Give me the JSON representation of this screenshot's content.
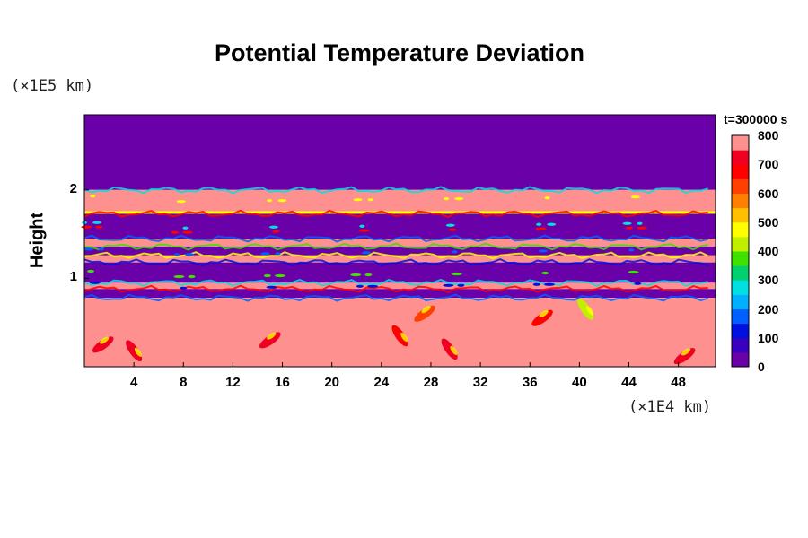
{
  "chart_data": {
    "type": "heatmap",
    "title": "Potential Temperature Deviation",
    "ylabel": "Height",
    "y_unit": "(×1E5 km)",
    "x_unit": "(×1E4 km)",
    "time_label": "t=300000 s",
    "xlim": [
      0,
      51
    ],
    "ylim": [
      0,
      2.85
    ],
    "x_ticks": [
      4,
      8,
      12,
      16,
      20,
      24,
      28,
      32,
      36,
      40,
      44,
      48
    ],
    "y_ticks": [
      1,
      2
    ],
    "colorbar": {
      "min": 0,
      "max": 800,
      "ticks": [
        0,
        100,
        200,
        300,
        400,
        500,
        600,
        700,
        800
      ],
      "colors": [
        "#6a00a8",
        "#3a00c0",
        "#0010e0",
        "#0060ff",
        "#00b0ff",
        "#00e0e0",
        "#00d070",
        "#40e000",
        "#c0f000",
        "#ffff00",
        "#ffc000",
        "#ff8000",
        "#ff4000",
        "#ff0000",
        "#f00020",
        "#ff9090"
      ]
    },
    "layers": [
      {
        "y_bottom": 2.0,
        "y_top": 2.85,
        "value": 0
      },
      {
        "y_bottom": 1.76,
        "y_top": 2.0,
        "value": 800
      },
      {
        "y_bottom": 1.73,
        "y_top": 1.76,
        "value": 450
      },
      {
        "y_bottom": 1.45,
        "y_top": 1.73,
        "value": 0
      },
      {
        "y_bottom": 1.36,
        "y_top": 1.45,
        "value": 800
      },
      {
        "y_bottom": 1.26,
        "y_top": 1.36,
        "value": 0
      },
      {
        "y_bottom": 1.18,
        "y_top": 1.26,
        "value": 800
      },
      {
        "y_bottom": 0.95,
        "y_top": 1.18,
        "value": 0
      },
      {
        "y_bottom": 0.88,
        "y_top": 0.95,
        "value": 800
      },
      {
        "y_bottom": 0.78,
        "y_top": 0.88,
        "value": 0
      },
      {
        "y_bottom": 0.0,
        "y_top": 0.78,
        "value": 800
      }
    ],
    "features": [
      {
        "x": 1.5,
        "y": 0.25,
        "value": 700
      },
      {
        "x": 4.0,
        "y": 0.18,
        "value": 700
      },
      {
        "x": 15.0,
        "y": 0.3,
        "value": 700
      },
      {
        "x": 25.5,
        "y": 0.35,
        "value": 650
      },
      {
        "x": 27.5,
        "y": 0.6,
        "value": 600
      },
      {
        "x": 29.5,
        "y": 0.2,
        "value": 700
      },
      {
        "x": 37.0,
        "y": 0.55,
        "value": 650
      },
      {
        "x": 40.5,
        "y": 0.65,
        "value": 400
      },
      {
        "x": 48.5,
        "y": 0.12,
        "value": 700
      }
    ]
  }
}
